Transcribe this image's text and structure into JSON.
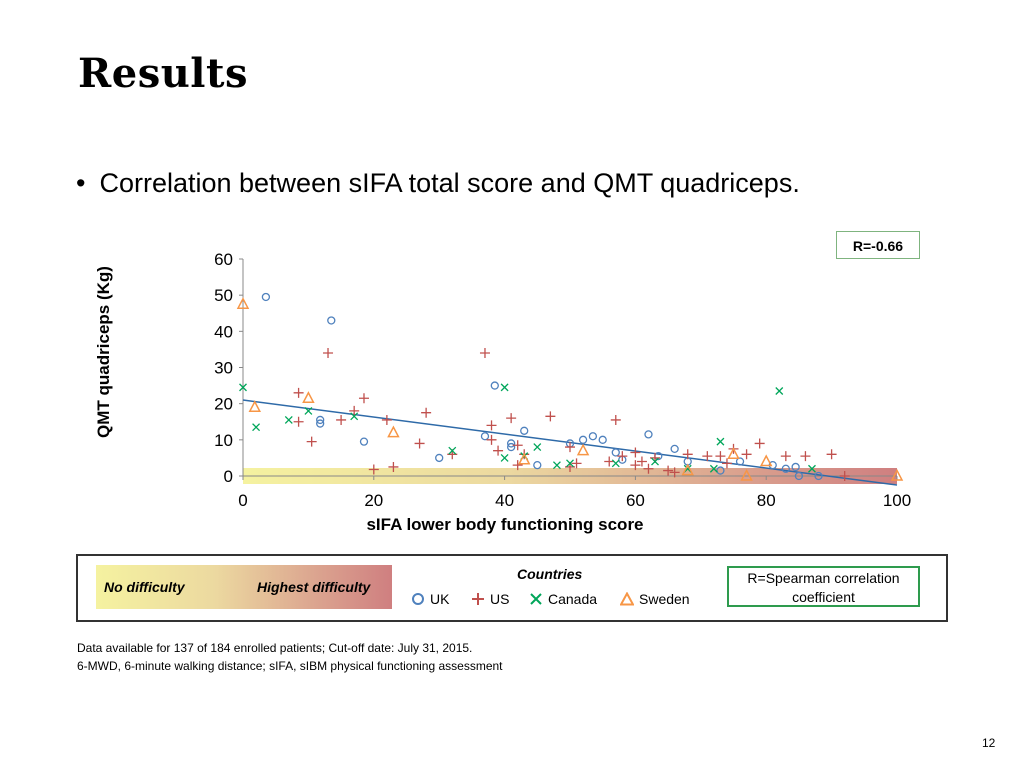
{
  "slide": {
    "title": "Results",
    "bullet": "Correlation between sIFA total score and QMT quadriceps.",
    "correlation_label": "R=-0.66",
    "footnotes": [
      "Data available for 137 of 184 enrolled patients; Cut-off date: July 31, 2015.",
      "6-MWD, 6-minute walking distance; sIFA, sIBM physical functioning assessment"
    ],
    "page_number": "12"
  },
  "legend": {
    "gradient_left": "No difficulty",
    "gradient_right": "Highest difficulty",
    "countries_title": "Countries",
    "items": [
      {
        "label": "UK",
        "color": "#4f81bd",
        "marker": "circle"
      },
      {
        "label": "US",
        "color": "#c0504d",
        "marker": "plus"
      },
      {
        "label": "Canada",
        "color": "#00a65a",
        "marker": "x"
      },
      {
        "label": "Sweden",
        "color": "#f79646",
        "marker": "triangle"
      }
    ],
    "spearman_note": "R=Spearman correlation coefficient"
  },
  "chart_data": {
    "type": "scatter",
    "xlabel": "sIFA lower body functioning score",
    "ylabel": "QMT quadriceps (Kg)",
    "xlim": [
      0,
      100
    ],
    "ylim": [
      0,
      60
    ],
    "xticks": [
      0,
      20,
      40,
      60,
      80,
      100
    ],
    "yticks": [
      0,
      10,
      20,
      30,
      40,
      50,
      60
    ],
    "grid": false,
    "trendline": {
      "x": [
        0,
        100
      ],
      "y": [
        21,
        -2.5
      ],
      "color": "#2e6aa8"
    },
    "series": [
      {
        "name": "UK",
        "color": "#4f81bd",
        "marker": "circle",
        "points": [
          [
            3.5,
            49.5
          ],
          [
            13.5,
            43
          ],
          [
            38.5,
            25
          ],
          [
            11.8,
            15.5
          ],
          [
            11.8,
            14.5
          ],
          [
            18.5,
            9.5
          ],
          [
            30,
            5
          ],
          [
            37,
            11
          ],
          [
            41,
            9
          ],
          [
            41,
            8
          ],
          [
            43,
            12.5
          ],
          [
            45,
            3
          ],
          [
            50,
            9
          ],
          [
            52,
            10
          ],
          [
            53.5,
            11
          ],
          [
            55,
            10
          ],
          [
            57,
            6.5
          ],
          [
            58,
            4.5
          ],
          [
            62,
            11.5
          ],
          [
            63.5,
            5.5
          ],
          [
            66,
            7.5
          ],
          [
            68,
            4
          ],
          [
            73,
            1.5
          ],
          [
            76,
            4
          ],
          [
            81,
            3
          ],
          [
            83,
            2
          ],
          [
            84.5,
            2.5
          ],
          [
            85,
            0
          ],
          [
            88,
            0
          ]
        ]
      },
      {
        "name": "US",
        "color": "#c0504d",
        "marker": "plus",
        "points": [
          [
            8.5,
            23
          ],
          [
            8.5,
            15
          ],
          [
            10.5,
            9.5
          ],
          [
            13,
            34
          ],
          [
            15,
            15.5
          ],
          [
            17,
            18
          ],
          [
            18.5,
            21.5
          ],
          [
            20,
            1.8
          ],
          [
            22,
            15.5
          ],
          [
            23,
            2.5
          ],
          [
            27,
            9
          ],
          [
            28,
            17.5
          ],
          [
            32,
            6
          ],
          [
            37,
            34
          ],
          [
            38,
            10
          ],
          [
            38,
            14
          ],
          [
            39,
            7
          ],
          [
            41,
            16
          ],
          [
            42,
            3
          ],
          [
            42,
            8.5
          ],
          [
            43,
            6
          ],
          [
            47,
            16.5
          ],
          [
            50,
            2.5
          ],
          [
            50,
            8
          ],
          [
            51,
            3.5
          ],
          [
            56,
            4
          ],
          [
            57,
            15.5
          ],
          [
            58,
            5.5
          ],
          [
            60,
            3
          ],
          [
            60,
            6.5
          ],
          [
            61,
            4
          ],
          [
            62,
            2
          ],
          [
            63,
            5
          ],
          [
            65,
            1.5
          ],
          [
            66,
            1
          ],
          [
            68,
            6
          ],
          [
            71,
            5.5
          ],
          [
            73,
            5.5
          ],
          [
            74,
            3.5
          ],
          [
            75,
            7.5
          ],
          [
            77,
            6
          ],
          [
            79,
            9
          ],
          [
            83,
            5.5
          ],
          [
            86,
            5.5
          ],
          [
            90,
            6
          ],
          [
            92,
            0
          ]
        ]
      },
      {
        "name": "Canada",
        "color": "#00a65a",
        "marker": "x",
        "points": [
          [
            0,
            24.5
          ],
          [
            2,
            13.5
          ],
          [
            7,
            15.5
          ],
          [
            10,
            18
          ],
          [
            17,
            16.5
          ],
          [
            32,
            7
          ],
          [
            40,
            24.5
          ],
          [
            40,
            5
          ],
          [
            43,
            5.5
          ],
          [
            45,
            8
          ],
          [
            48,
            3
          ],
          [
            50,
            3.5
          ],
          [
            57,
            3.5
          ],
          [
            63,
            4
          ],
          [
            68,
            2
          ],
          [
            72,
            2
          ],
          [
            73,
            9.5
          ],
          [
            82,
            23.5
          ],
          [
            87,
            2
          ]
        ]
      },
      {
        "name": "Sweden",
        "color": "#f79646",
        "marker": "triangle",
        "points": [
          [
            0,
            47.5
          ],
          [
            1.8,
            19
          ],
          [
            10,
            21.5
          ],
          [
            23,
            12
          ],
          [
            43,
            4.5
          ],
          [
            52,
            7
          ],
          [
            68,
            1.5
          ],
          [
            75,
            6
          ],
          [
            77,
            0
          ],
          [
            80,
            4
          ],
          [
            100,
            0
          ]
        ]
      }
    ]
  }
}
